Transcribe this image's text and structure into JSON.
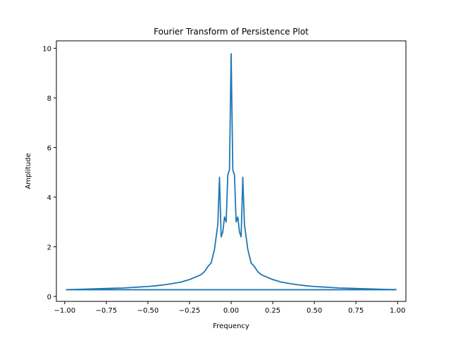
{
  "chart_data": {
    "type": "line",
    "title": "Fourier Transform of Persistence Plot",
    "xlabel": "Frequency",
    "ylabel": "Amplitude",
    "xlim": [
      -1.05,
      1.05
    ],
    "ylim": [
      -0.2,
      10.3
    ],
    "x_ticks": [
      -1.0,
      -0.75,
      -0.5,
      -0.25,
      0.0,
      0.25,
      0.5,
      0.75,
      1.0
    ],
    "x_tick_labels": [
      "−1.00",
      "−0.75",
      "−0.50",
      "−0.25",
      "0.00",
      "0.25",
      "0.50",
      "0.75",
      "1.00"
    ],
    "y_ticks": [
      0,
      2,
      4,
      6,
      8,
      10
    ],
    "y_tick_labels": [
      "0",
      "2",
      "4",
      "6",
      "8",
      "10"
    ],
    "grid": false,
    "line_color": "#1f77b4",
    "series": [
      {
        "x": [
          0.0,
          0.01,
          0.02,
          0.03,
          0.04,
          0.05,
          0.06,
          0.07,
          0.08,
          0.09,
          0.1,
          0.12,
          0.14,
          0.16,
          0.18,
          0.2,
          0.25,
          0.3,
          0.35,
          0.4,
          0.45,
          0.5,
          0.55,
          0.6,
          0.65,
          0.7,
          0.75,
          0.8,
          0.85,
          0.9,
          0.95,
          0.99,
          0.99,
          -0.99,
          -0.95,
          -0.9,
          -0.85,
          -0.8,
          -0.75,
          -0.7,
          -0.65,
          -0.6,
          -0.55,
          -0.5,
          -0.45,
          -0.4,
          -0.35,
          -0.3,
          -0.25,
          -0.2,
          -0.18,
          -0.16,
          -0.14,
          -0.12,
          -0.1,
          -0.09,
          -0.08,
          -0.07,
          -0.06,
          -0.05,
          -0.04,
          -0.03,
          -0.02,
          -0.01,
          0.0
        ],
        "y": [
          9.8,
          5.1,
          4.9,
          3.0,
          3.2,
          2.6,
          2.4,
          4.8,
          2.9,
          2.4,
          1.9,
          1.35,
          1.2,
          1.0,
          0.88,
          0.82,
          0.68,
          0.58,
          0.52,
          0.47,
          0.43,
          0.4,
          0.38,
          0.36,
          0.34,
          0.33,
          0.32,
          0.31,
          0.3,
          0.29,
          0.28,
          0.28,
          0.27,
          0.27,
          0.28,
          0.29,
          0.3,
          0.31,
          0.32,
          0.33,
          0.34,
          0.36,
          0.38,
          0.4,
          0.43,
          0.47,
          0.52,
          0.58,
          0.68,
          0.82,
          0.88,
          1.0,
          1.2,
          1.35,
          1.9,
          2.4,
          2.9,
          4.8,
          2.4,
          2.6,
          3.2,
          3.0,
          4.9,
          5.1,
          9.8
        ]
      }
    ]
  }
}
